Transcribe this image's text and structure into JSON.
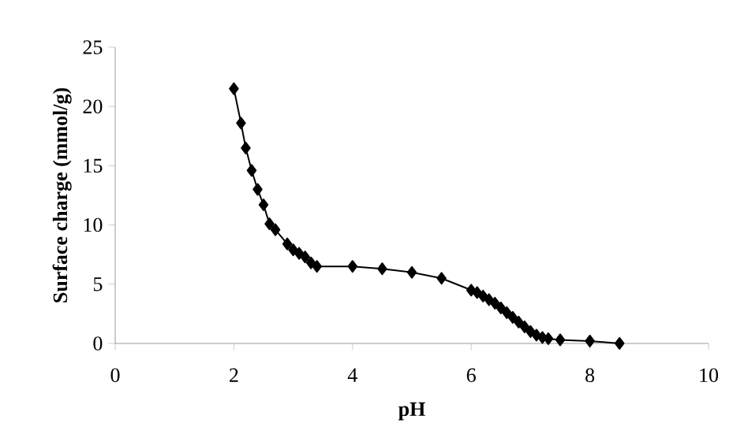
{
  "chart_data": {
    "type": "line",
    "xlabel": "pH",
    "ylabel": "Surface charge (mmol/g)",
    "x": [
      2.0,
      2.12,
      2.2,
      2.3,
      2.4,
      2.5,
      2.6,
      2.7,
      2.9,
      3.0,
      3.1,
      3.2,
      3.3,
      3.4,
      4.0,
      4.5,
      5.0,
      5.5,
      6.0,
      6.1,
      6.2,
      6.3,
      6.4,
      6.5,
      6.6,
      6.7,
      6.8,
      6.9,
      7.0,
      7.1,
      7.2,
      7.3,
      7.5,
      8.0,
      8.5
    ],
    "series": [
      {
        "color": "#000000",
        "values": [
          21.5,
          18.6,
          16.5,
          14.6,
          13.0,
          11.7,
          10.1,
          9.6,
          8.4,
          7.9,
          7.6,
          7.3,
          6.8,
          6.5,
          6.5,
          6.3,
          6.0,
          5.5,
          4.5,
          4.3,
          4.0,
          3.7,
          3.4,
          3.0,
          2.6,
          2.2,
          1.8,
          1.4,
          1.0,
          0.7,
          0.5,
          0.4,
          0.3,
          0.2,
          0.0
        ]
      }
    ],
    "xlim": [
      0,
      10
    ],
    "ylim": [
      0,
      25
    ],
    "xticks": [
      0,
      2,
      4,
      6,
      8,
      10
    ],
    "yticks": [
      0,
      5,
      10,
      15,
      20,
      25
    ],
    "marker": "diamond",
    "line_style": "solid",
    "grid": false
  }
}
